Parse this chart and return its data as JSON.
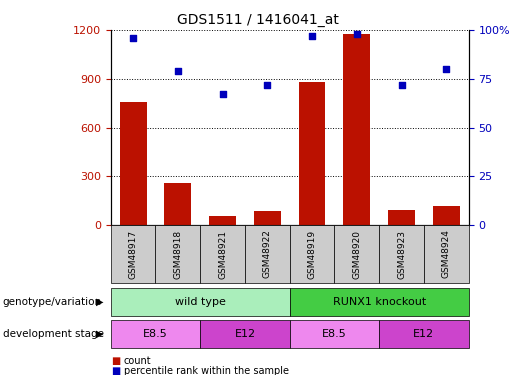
{
  "title": "GDS1511 / 1416041_at",
  "samples": [
    "GSM48917",
    "GSM48918",
    "GSM48921",
    "GSM48922",
    "GSM48919",
    "GSM48920",
    "GSM48923",
    "GSM48924"
  ],
  "counts": [
    760,
    260,
    55,
    85,
    880,
    1175,
    90,
    115
  ],
  "percentiles": [
    96,
    79,
    67,
    72,
    97,
    98,
    72,
    80
  ],
  "ylim_left": [
    0,
    1200
  ],
  "ylim_right": [
    0,
    100
  ],
  "yticks_left": [
    0,
    300,
    600,
    900,
    1200
  ],
  "yticks_right": [
    0,
    25,
    50,
    75,
    100
  ],
  "bar_color": "#bb1100",
  "dot_color": "#0000bb",
  "genotype_groups": [
    {
      "label": "wild type",
      "start": 0,
      "end": 4,
      "color": "#aaeebb"
    },
    {
      "label": "RUNX1 knockout",
      "start": 4,
      "end": 8,
      "color": "#44cc44"
    }
  ],
  "stage_groups": [
    {
      "label": "E8.5",
      "start": 0,
      "end": 2,
      "color": "#ee88ee"
    },
    {
      "label": "E12",
      "start": 2,
      "end": 4,
      "color": "#cc44cc"
    },
    {
      "label": "E8.5",
      "start": 4,
      "end": 6,
      "color": "#ee88ee"
    },
    {
      "label": "E12",
      "start": 6,
      "end": 8,
      "color": "#cc44cc"
    }
  ],
  "legend_count_color": "#bb1100",
  "legend_pct_color": "#0000bb",
  "grid_color": "#000000",
  "left_tick_color": "#bb1100",
  "right_tick_color": "#0000bb",
  "bg_color": "#ffffff",
  "sample_box_color": "#cccccc"
}
